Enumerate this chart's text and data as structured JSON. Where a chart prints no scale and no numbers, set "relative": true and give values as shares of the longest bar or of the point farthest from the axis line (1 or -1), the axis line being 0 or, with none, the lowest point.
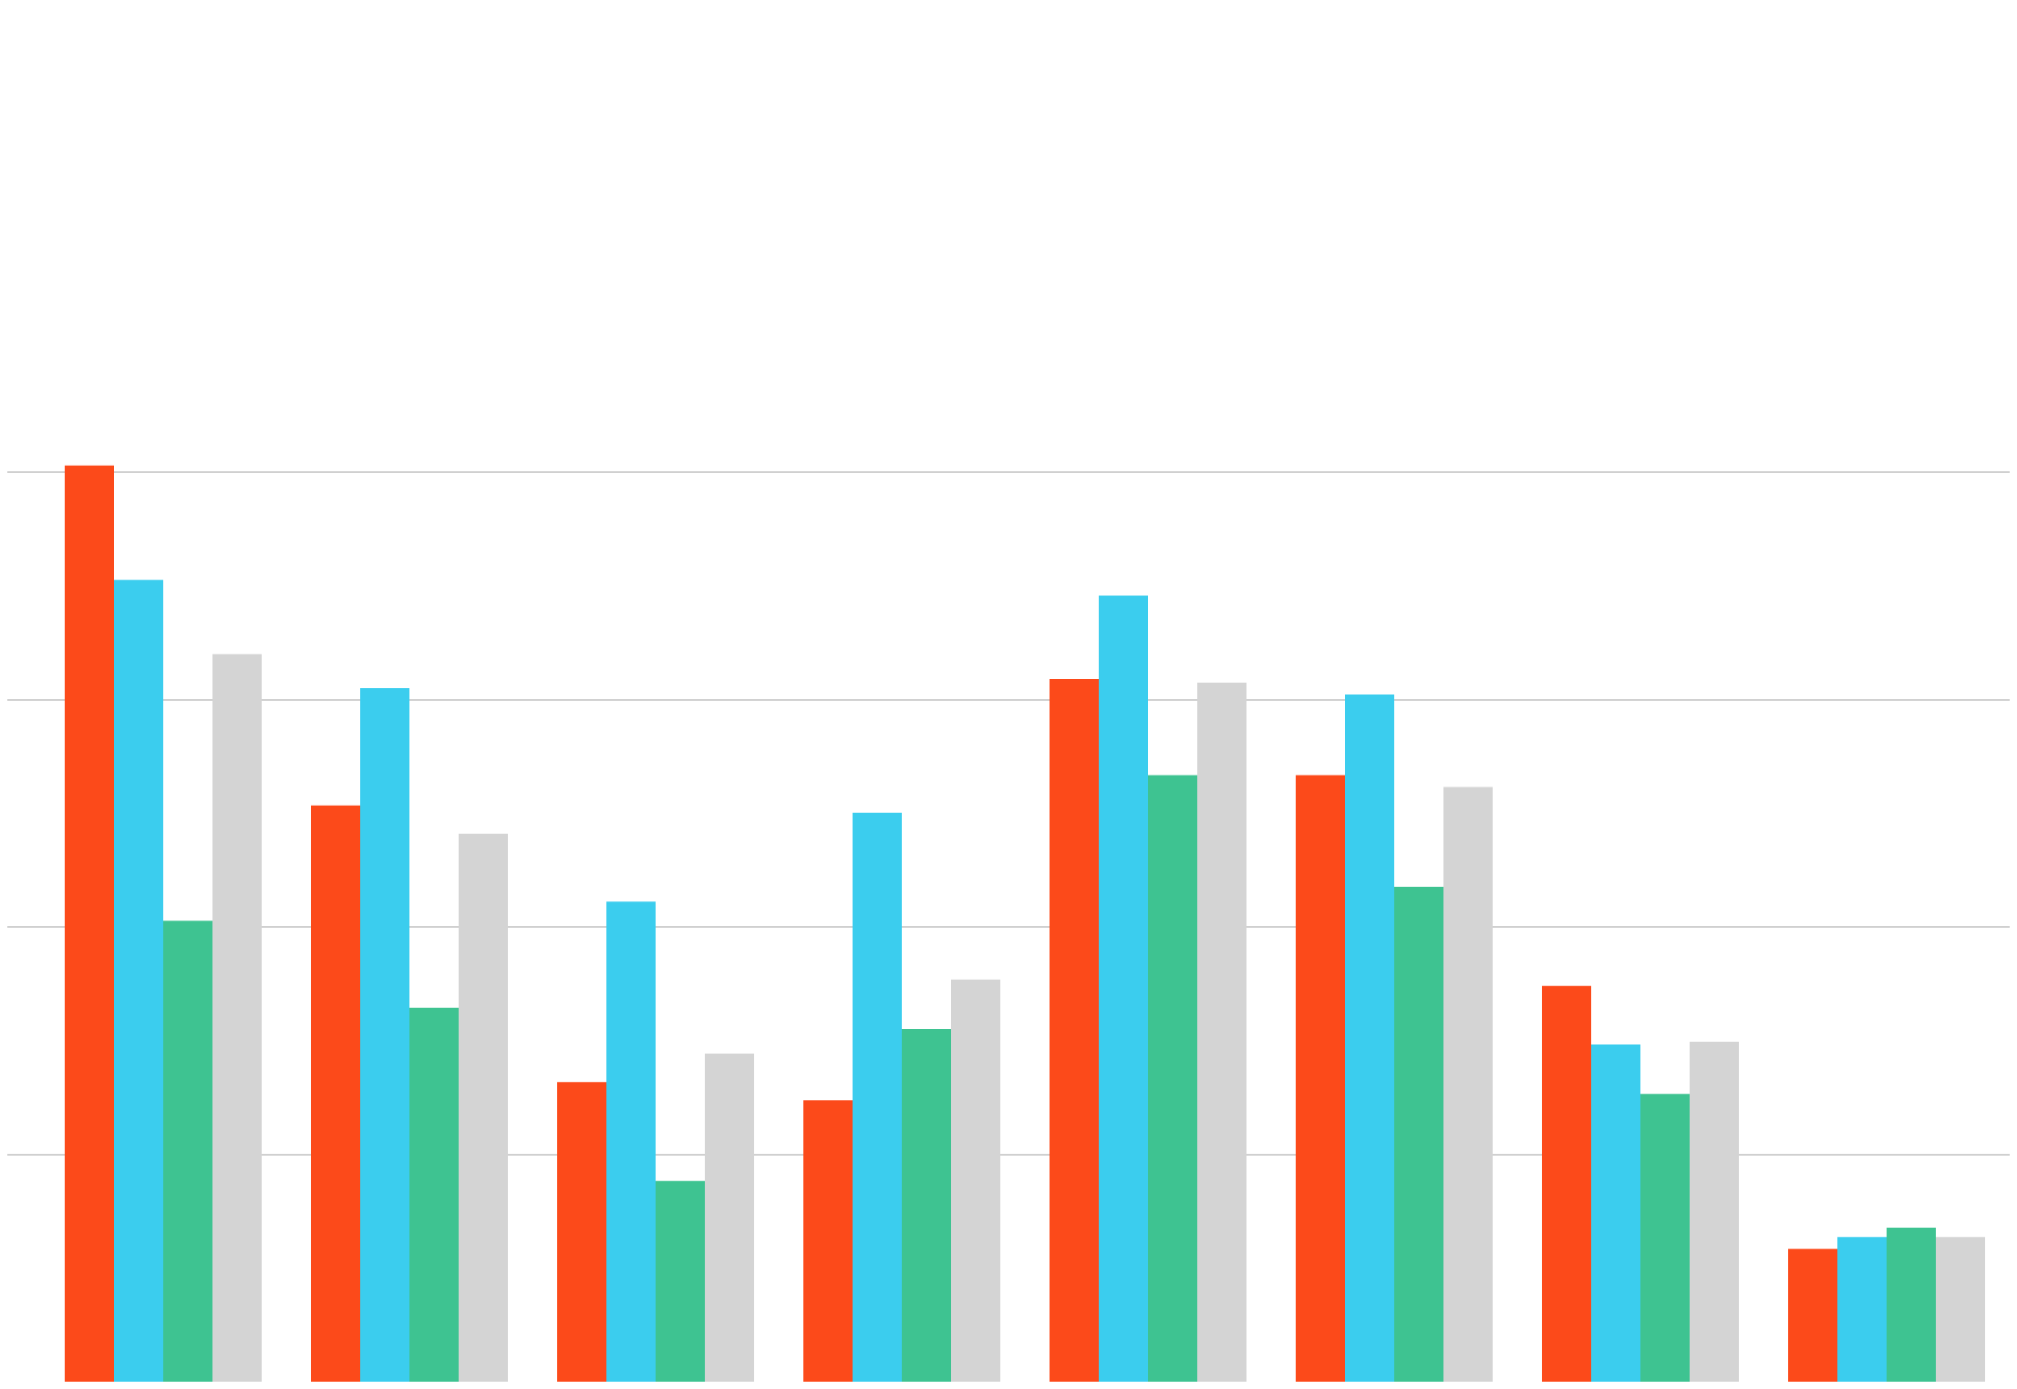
{
  "chart_data": {
    "type": "bar",
    "relative": true,
    "grid": "y",
    "legend": false,
    "categories": [
      null,
      null,
      null,
      null,
      null,
      null,
      null,
      null
    ],
    "series": [
      {
        "color": "#fc4a1a",
        "values": [
          1.0,
          0.629,
          0.327,
          0.307,
          0.767,
          0.662,
          0.432,
          0.145
        ]
      },
      {
        "color": "#3bcdee",
        "values": [
          0.875,
          0.757,
          0.524,
          0.621,
          0.858,
          0.75,
          0.368,
          0.158
        ]
      },
      {
        "color": "#3ec391",
        "values": [
          0.503,
          0.408,
          0.219,
          0.385,
          0.662,
          0.54,
          0.314,
          0.168
        ]
      },
      {
        "color": "#d4d4d4",
        "values": [
          0.794,
          0.598,
          0.358,
          0.439,
          0.763,
          0.649,
          0.371,
          0.158
        ]
      }
    ]
  }
}
